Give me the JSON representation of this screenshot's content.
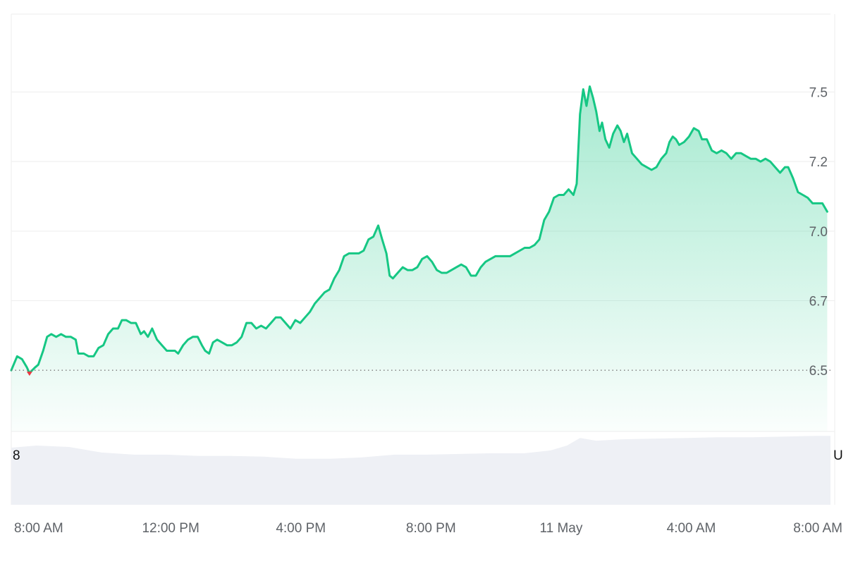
{
  "chart_data": {
    "type": "area",
    "title": "",
    "xlabel": "",
    "ylabel": "",
    "ylim": [
      6.28,
      7.78
    ],
    "y_ticks": [
      "6.5",
      "6.7",
      "7.0",
      "7.2",
      "7.5"
    ],
    "y_tick_values": [
      6.5,
      6.75,
      7.0,
      7.25,
      7.5
    ],
    "baseline": 6.5,
    "x_ticks": [
      "8:00 AM",
      "12:00 PM",
      "4:00 PM",
      "8:00 PM",
      "11 May",
      "4:00 AM",
      "8:00 AM"
    ],
    "x_tick_hours": [
      0.12,
      4.12,
      8.12,
      12.12,
      16.12,
      20.12,
      24.12
    ],
    "xlim_hours": [
      -0.78,
      24.4
    ],
    "edge_labels": {
      "left": "8",
      "right": "U"
    },
    "grid": true,
    "series": [
      {
        "values": [
          [
            -0.78,
            6.5
          ],
          [
            -0.6,
            6.55
          ],
          [
            -0.45,
            6.54
          ],
          [
            -0.3,
            6.51
          ],
          [
            -0.22,
            6.49
          ],
          [
            -0.05,
            6.51
          ],
          [
            0.05,
            6.52
          ],
          [
            0.2,
            6.57
          ],
          [
            0.32,
            6.62
          ],
          [
            0.45,
            6.63
          ],
          [
            0.6,
            6.62
          ],
          [
            0.75,
            6.63
          ],
          [
            0.9,
            6.62
          ],
          [
            1.05,
            6.62
          ],
          [
            1.2,
            6.61
          ],
          [
            1.28,
            6.56
          ],
          [
            1.45,
            6.56
          ],
          [
            1.6,
            6.55
          ],
          [
            1.75,
            6.55
          ],
          [
            1.9,
            6.58
          ],
          [
            2.05,
            6.59
          ],
          [
            2.2,
            6.63
          ],
          [
            2.35,
            6.65
          ],
          [
            2.5,
            6.65
          ],
          [
            2.62,
            6.68
          ],
          [
            2.75,
            6.68
          ],
          [
            2.9,
            6.67
          ],
          [
            3.05,
            6.67
          ],
          [
            3.2,
            6.63
          ],
          [
            3.3,
            6.64
          ],
          [
            3.42,
            6.62
          ],
          [
            3.55,
            6.65
          ],
          [
            3.7,
            6.61
          ],
          [
            3.85,
            6.59
          ],
          [
            4.0,
            6.57
          ],
          [
            4.15,
            6.57
          ],
          [
            4.25,
            6.57
          ],
          [
            4.35,
            6.56
          ],
          [
            4.5,
            6.59
          ],
          [
            4.65,
            6.61
          ],
          [
            4.8,
            6.62
          ],
          [
            4.95,
            6.62
          ],
          [
            5.08,
            6.59
          ],
          [
            5.18,
            6.57
          ],
          [
            5.3,
            6.56
          ],
          [
            5.42,
            6.6
          ],
          [
            5.55,
            6.61
          ],
          [
            5.7,
            6.6
          ],
          [
            5.85,
            6.59
          ],
          [
            6.0,
            6.59
          ],
          [
            6.15,
            6.6
          ],
          [
            6.3,
            6.62
          ],
          [
            6.45,
            6.67
          ],
          [
            6.6,
            6.67
          ],
          [
            6.75,
            6.65
          ],
          [
            6.9,
            6.66
          ],
          [
            7.05,
            6.65
          ],
          [
            7.2,
            6.67
          ],
          [
            7.35,
            6.69
          ],
          [
            7.5,
            6.69
          ],
          [
            7.65,
            6.67
          ],
          [
            7.8,
            6.65
          ],
          [
            7.95,
            6.68
          ],
          [
            8.1,
            6.67
          ],
          [
            8.25,
            6.69
          ],
          [
            8.4,
            6.71
          ],
          [
            8.55,
            6.74
          ],
          [
            8.7,
            6.76
          ],
          [
            8.85,
            6.78
          ],
          [
            9.0,
            6.79
          ],
          [
            9.15,
            6.83
          ],
          [
            9.3,
            6.86
          ],
          [
            9.45,
            6.91
          ],
          [
            9.6,
            6.92
          ],
          [
            9.75,
            6.92
          ],
          [
            9.9,
            6.92
          ],
          [
            10.05,
            6.93
          ],
          [
            10.2,
            6.97
          ],
          [
            10.35,
            6.98
          ],
          [
            10.5,
            7.02
          ],
          [
            10.62,
            6.97
          ],
          [
            10.75,
            6.92
          ],
          [
            10.85,
            6.84
          ],
          [
            10.95,
            6.83
          ],
          [
            11.1,
            6.85
          ],
          [
            11.25,
            6.87
          ],
          [
            11.4,
            6.86
          ],
          [
            11.55,
            6.86
          ],
          [
            11.7,
            6.87
          ],
          [
            11.85,
            6.9
          ],
          [
            12.0,
            6.91
          ],
          [
            12.15,
            6.89
          ],
          [
            12.3,
            6.86
          ],
          [
            12.45,
            6.85
          ],
          [
            12.6,
            6.85
          ],
          [
            12.75,
            6.86
          ],
          [
            12.9,
            6.87
          ],
          [
            13.05,
            6.88
          ],
          [
            13.2,
            6.87
          ],
          [
            13.35,
            6.84
          ],
          [
            13.5,
            6.84
          ],
          [
            13.65,
            6.87
          ],
          [
            13.8,
            6.89
          ],
          [
            13.95,
            6.9
          ],
          [
            14.1,
            6.91
          ],
          [
            14.25,
            6.91
          ],
          [
            14.4,
            6.91
          ],
          [
            14.55,
            6.91
          ],
          [
            14.7,
            6.92
          ],
          [
            14.85,
            6.93
          ],
          [
            15.0,
            6.94
          ],
          [
            15.15,
            6.94
          ],
          [
            15.3,
            6.95
          ],
          [
            15.45,
            6.97
          ],
          [
            15.6,
            7.04
          ],
          [
            15.75,
            7.07
          ],
          [
            15.9,
            7.12
          ],
          [
            16.05,
            7.13
          ],
          [
            16.2,
            7.13
          ],
          [
            16.35,
            7.15
          ],
          [
            16.5,
            7.13
          ],
          [
            16.6,
            7.17
          ],
          [
            16.7,
            7.42
          ],
          [
            16.8,
            7.51
          ],
          [
            16.9,
            7.45
          ],
          [
            17.0,
            7.52
          ],
          [
            17.1,
            7.48
          ],
          [
            17.2,
            7.43
          ],
          [
            17.3,
            7.36
          ],
          [
            17.38,
            7.39
          ],
          [
            17.48,
            7.33
          ],
          [
            17.6,
            7.3
          ],
          [
            17.72,
            7.35
          ],
          [
            17.85,
            7.38
          ],
          [
            17.95,
            7.36
          ],
          [
            18.05,
            7.32
          ],
          [
            18.15,
            7.35
          ],
          [
            18.3,
            7.28
          ],
          [
            18.45,
            7.26
          ],
          [
            18.6,
            7.24
          ],
          [
            18.75,
            7.23
          ],
          [
            18.9,
            7.22
          ],
          [
            19.05,
            7.23
          ],
          [
            19.2,
            7.26
          ],
          [
            19.35,
            7.28
          ],
          [
            19.45,
            7.32
          ],
          [
            19.55,
            7.34
          ],
          [
            19.65,
            7.33
          ],
          [
            19.75,
            7.31
          ],
          [
            19.9,
            7.32
          ],
          [
            20.05,
            7.34
          ],
          [
            20.2,
            7.37
          ],
          [
            20.35,
            7.36
          ],
          [
            20.45,
            7.33
          ],
          [
            20.6,
            7.33
          ],
          [
            20.75,
            7.29
          ],
          [
            20.9,
            7.28
          ],
          [
            21.05,
            7.29
          ],
          [
            21.2,
            7.28
          ],
          [
            21.35,
            7.26
          ],
          [
            21.5,
            7.28
          ],
          [
            21.65,
            7.28
          ],
          [
            21.8,
            7.27
          ],
          [
            21.95,
            7.26
          ],
          [
            22.1,
            7.26
          ],
          [
            22.25,
            7.25
          ],
          [
            22.4,
            7.26
          ],
          [
            22.55,
            7.25
          ],
          [
            22.7,
            7.23
          ],
          [
            22.85,
            7.21
          ],
          [
            23.0,
            7.23
          ],
          [
            23.1,
            7.23
          ],
          [
            23.25,
            7.19
          ],
          [
            23.4,
            7.14
          ],
          [
            23.55,
            7.13
          ],
          [
            23.7,
            7.12
          ],
          [
            23.85,
            7.1
          ],
          [
            24.0,
            7.1
          ],
          [
            24.15,
            7.1
          ],
          [
            24.3,
            7.07
          ]
        ]
      }
    ],
    "volume": {
      "values": [
        [
          -0.78,
          0.82
        ],
        [
          0.0,
          0.85
        ],
        [
          1.0,
          0.83
        ],
        [
          2.0,
          0.75
        ],
        [
          3.0,
          0.72
        ],
        [
          4.0,
          0.72
        ],
        [
          5.0,
          0.7
        ],
        [
          6.0,
          0.7
        ],
        [
          7.0,
          0.69
        ],
        [
          8.0,
          0.66
        ],
        [
          9.0,
          0.66
        ],
        [
          10.0,
          0.68
        ],
        [
          11.0,
          0.72
        ],
        [
          12.0,
          0.72
        ],
        [
          13.0,
          0.73
        ],
        [
          14.0,
          0.74
        ],
        [
          15.0,
          0.74
        ],
        [
          15.8,
          0.78
        ],
        [
          16.3,
          0.85
        ],
        [
          16.7,
          0.96
        ],
        [
          17.2,
          0.92
        ],
        [
          18.0,
          0.94
        ],
        [
          19.0,
          0.95
        ],
        [
          20.0,
          0.96
        ],
        [
          21.0,
          0.97
        ],
        [
          22.0,
          0.97
        ],
        [
          23.0,
          0.98
        ],
        [
          24.0,
          0.99
        ],
        [
          24.4,
          0.99
        ]
      ]
    },
    "colors": {
      "line": "#16c784",
      "area_top": "#16c784",
      "baseline_marker": "#ea3943",
      "grid": "#eeeeee",
      "baseline_dots": "#7a7a7a",
      "volume_fill": "#eef0f5"
    }
  }
}
